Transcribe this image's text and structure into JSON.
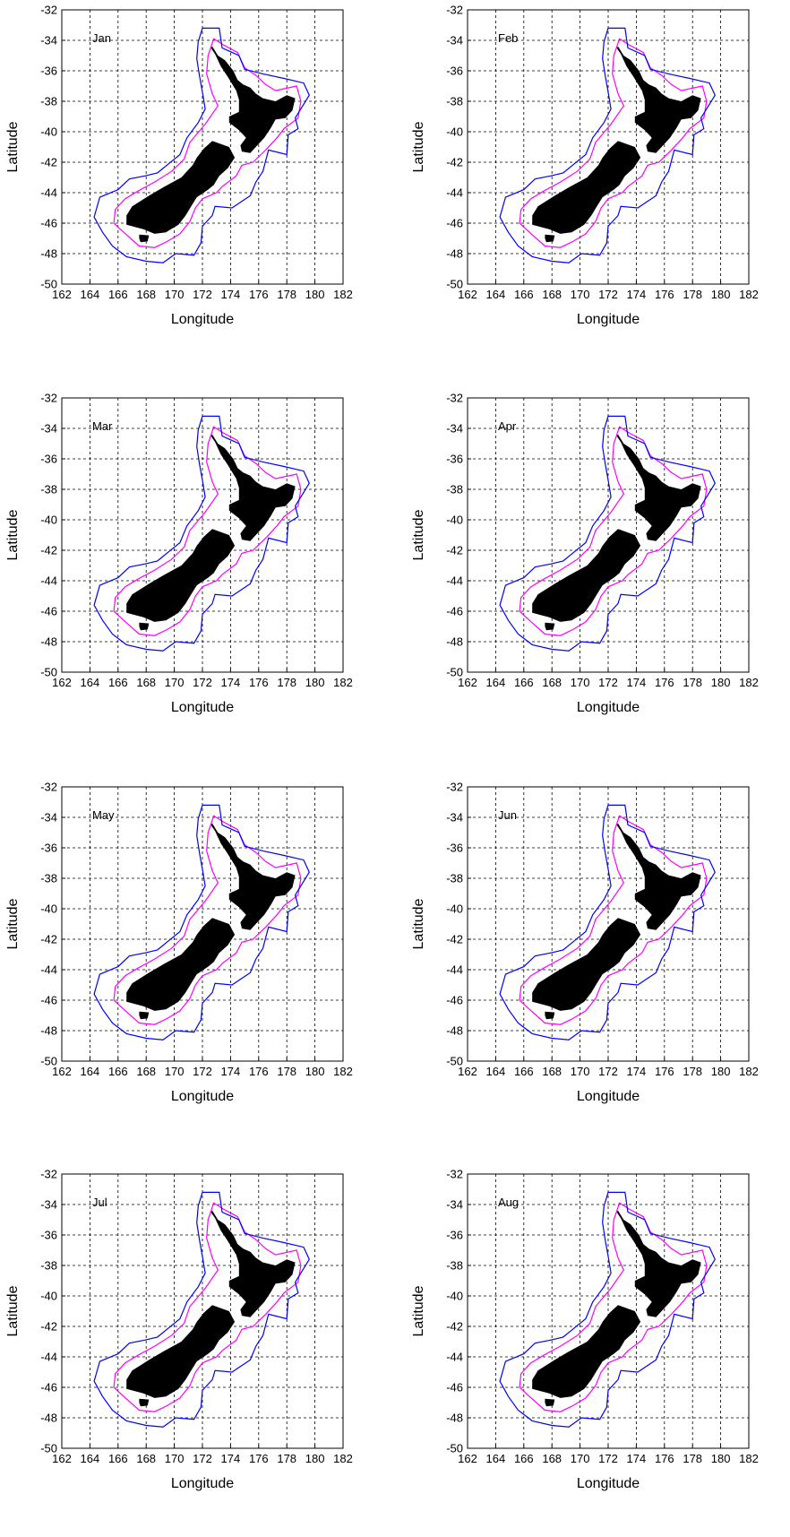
{
  "chart_data": [
    {
      "type": "line",
      "annotation": "Jan",
      "xlabel": "Longitude",
      "ylabel": "Latitude",
      "xlim": [
        162,
        182
      ],
      "ylim": [
        -50,
        -32
      ],
      "grid": true,
      "xticks": [
        "162",
        "164",
        "166",
        "168",
        "170",
        "172",
        "174",
        "176",
        "178",
        "180",
        "182"
      ],
      "yticks": [
        "-32",
        "-34",
        "-36",
        "-38",
        "-40",
        "-42",
        "-44",
        "-46",
        "-48",
        "-50"
      ]
    },
    {
      "type": "line",
      "annotation": "Feb",
      "xlabel": "Longitude",
      "ylabel": "Latitude",
      "xlim": [
        162,
        182
      ],
      "ylim": [
        -50,
        -32
      ],
      "grid": true,
      "xticks": [
        "162",
        "164",
        "166",
        "168",
        "170",
        "172",
        "174",
        "176",
        "178",
        "180",
        "182"
      ],
      "yticks": [
        "-32",
        "-34",
        "-36",
        "-38",
        "-40",
        "-42",
        "-44",
        "-46",
        "-48",
        "-50"
      ]
    },
    {
      "type": "line",
      "annotation": "Mar",
      "xlabel": "Longitude",
      "ylabel": "Latitude",
      "xlim": [
        162,
        182
      ],
      "ylim": [
        -50,
        -32
      ],
      "grid": true,
      "xticks": [
        "162",
        "164",
        "166",
        "168",
        "170",
        "172",
        "174",
        "176",
        "178",
        "180",
        "182"
      ],
      "yticks": [
        "-32",
        "-34",
        "-36",
        "-38",
        "-40",
        "-42",
        "-44",
        "-46",
        "-48",
        "-50"
      ]
    },
    {
      "type": "line",
      "annotation": "Apr",
      "xlabel": "Longitude",
      "ylabel": "Latitude",
      "xlim": [
        162,
        182
      ],
      "ylim": [
        -50,
        -32
      ],
      "grid": true,
      "xticks": [
        "162",
        "164",
        "166",
        "168",
        "170",
        "172",
        "174",
        "176",
        "178",
        "180",
        "182"
      ],
      "yticks": [
        "-32",
        "-34",
        "-36",
        "-38",
        "-40",
        "-42",
        "-44",
        "-46",
        "-48",
        "-50"
      ]
    },
    {
      "type": "line",
      "annotation": "May",
      "xlabel": "Longitude",
      "ylabel": "Latitude",
      "xlim": [
        162,
        182
      ],
      "ylim": [
        -50,
        -32
      ],
      "grid": true,
      "xticks": [
        "162",
        "164",
        "166",
        "168",
        "170",
        "172",
        "174",
        "176",
        "178",
        "180",
        "182"
      ],
      "yticks": [
        "-32",
        "-34",
        "-36",
        "-38",
        "-40",
        "-42",
        "-44",
        "-46",
        "-48",
        "-50"
      ]
    },
    {
      "type": "line",
      "annotation": "Jun",
      "xlabel": "Longitude",
      "ylabel": "Latitude",
      "xlim": [
        162,
        182
      ],
      "ylim": [
        -50,
        -32
      ],
      "grid": true,
      "xticks": [
        "162",
        "164",
        "166",
        "168",
        "170",
        "172",
        "174",
        "176",
        "178",
        "180",
        "182"
      ],
      "yticks": [
        "-32",
        "-34",
        "-36",
        "-38",
        "-40",
        "-42",
        "-44",
        "-46",
        "-48",
        "-50"
      ]
    },
    {
      "type": "line",
      "annotation": "Jul",
      "xlabel": "Longitude",
      "ylabel": "Latitude",
      "xlim": [
        162,
        182
      ],
      "ylim": [
        -50,
        -32
      ],
      "grid": true,
      "xticks": [
        "162",
        "164",
        "166",
        "168",
        "170",
        "172",
        "174",
        "176",
        "178",
        "180",
        "182"
      ],
      "yticks": [
        "-32",
        "-34",
        "-36",
        "-38",
        "-40",
        "-42",
        "-44",
        "-46",
        "-48",
        "-50"
      ]
    },
    {
      "type": "line",
      "annotation": "Aug",
      "xlabel": "Longitude",
      "ylabel": "Latitude",
      "xlim": [
        162,
        182
      ],
      "ylim": [
        -50,
        -32
      ],
      "grid": true,
      "xticks": [
        "162",
        "164",
        "166",
        "168",
        "170",
        "172",
        "174",
        "176",
        "178",
        "180",
        "182"
      ],
      "yticks": [
        "-32",
        "-34",
        "-36",
        "-38",
        "-40",
        "-42",
        "-44",
        "-46",
        "-48",
        "-50"
      ]
    }
  ],
  "shapes": {
    "north_island": [
      [
        172.7,
        -34.4
      ],
      [
        173.1,
        -35.0
      ],
      [
        173.6,
        -35.3
      ],
      [
        174.2,
        -36.0
      ],
      [
        174.5,
        -36.6
      ],
      [
        174.9,
        -36.9
      ],
      [
        175.4,
        -37.1
      ],
      [
        175.8,
        -37.5
      ],
      [
        176.3,
        -37.8
      ],
      [
        177.2,
        -38.0
      ],
      [
        178.0,
        -37.6
      ],
      [
        178.6,
        -37.8
      ],
      [
        178.4,
        -38.6
      ],
      [
        177.9,
        -39.1
      ],
      [
        177.2,
        -39.2
      ],
      [
        176.9,
        -39.7
      ],
      [
        176.4,
        -40.4
      ],
      [
        175.9,
        -40.9
      ],
      [
        175.4,
        -41.4
      ],
      [
        174.8,
        -41.3
      ],
      [
        174.7,
        -40.9
      ],
      [
        175.1,
        -40.4
      ],
      [
        174.6,
        -39.9
      ],
      [
        173.9,
        -39.4
      ],
      [
        173.9,
        -39.0
      ],
      [
        174.6,
        -38.7
      ],
      [
        174.6,
        -37.9
      ],
      [
        174.4,
        -37.3
      ],
      [
        173.8,
        -36.4
      ],
      [
        173.3,
        -35.7
      ],
      [
        172.9,
        -34.9
      ],
      [
        172.6,
        -34.5
      ]
    ],
    "south_island": [
      [
        172.7,
        -40.6
      ],
      [
        173.9,
        -41.0
      ],
      [
        174.3,
        -41.7
      ],
      [
        173.8,
        -42.4
      ],
      [
        173.2,
        -42.9
      ],
      [
        172.8,
        -43.5
      ],
      [
        172.4,
        -43.8
      ],
      [
        171.6,
        -44.3
      ],
      [
        171.2,
        -44.9
      ],
      [
        170.8,
        -45.5
      ],
      [
        170.3,
        -46.1
      ],
      [
        169.4,
        -46.6
      ],
      [
        168.6,
        -46.7
      ],
      [
        167.8,
        -46.4
      ],
      [
        166.6,
        -46.1
      ],
      [
        166.6,
        -45.5
      ],
      [
        167.0,
        -44.9
      ],
      [
        168.2,
        -44.2
      ],
      [
        169.3,
        -43.6
      ],
      [
        170.5,
        -43.0
      ],
      [
        171.3,
        -42.2
      ],
      [
        171.6,
        -41.7
      ],
      [
        172.1,
        -41.1
      ]
    ],
    "stewart_island": [
      [
        167.5,
        -46.75
      ],
      [
        168.2,
        -46.8
      ],
      [
        168.1,
        -47.2
      ],
      [
        167.6,
        -47.25
      ],
      [
        167.5,
        -47.0
      ]
    ],
    "inner_contour": [
      [
        172.8,
        -33.9
      ],
      [
        173.5,
        -34.3
      ],
      [
        174.5,
        -34.8
      ],
      [
        175.0,
        -35.8
      ],
      [
        175.8,
        -36.3
      ],
      [
        176.5,
        -36.9
      ],
      [
        177.2,
        -37.3
      ],
      [
        178.7,
        -37.0
      ],
      [
        179.0,
        -38.0
      ],
      [
        178.8,
        -39.1
      ],
      [
        177.8,
        -39.8
      ],
      [
        177.3,
        -40.4
      ],
      [
        176.5,
        -41.2
      ],
      [
        175.6,
        -42.0
      ],
      [
        174.8,
        -42.2
      ],
      [
        174.4,
        -42.9
      ],
      [
        173.4,
        -43.6
      ],
      [
        173.0,
        -44.0
      ],
      [
        172.0,
        -44.4
      ],
      [
        171.5,
        -45.0
      ],
      [
        171.1,
        -45.9
      ],
      [
        170.4,
        -46.7
      ],
      [
        169.5,
        -47.2
      ],
      [
        168.6,
        -47.6
      ],
      [
        167.5,
        -47.5
      ],
      [
        166.4,
        -46.6
      ],
      [
        165.7,
        -46.0
      ],
      [
        165.8,
        -45.1
      ],
      [
        166.5,
        -44.4
      ],
      [
        167.4,
        -43.9
      ],
      [
        168.6,
        -43.3
      ],
      [
        169.8,
        -42.6
      ],
      [
        170.7,
        -41.8
      ],
      [
        171.1,
        -40.7
      ],
      [
        172.2,
        -39.5
      ],
      [
        173.1,
        -38.3
      ],
      [
        172.7,
        -37.5
      ],
      [
        172.3,
        -36.2
      ],
      [
        172.4,
        -35.0
      ]
    ],
    "outer_contour": [
      [
        172.0,
        -33.2
      ],
      [
        173.2,
        -33.2
      ],
      [
        173.4,
        -34.5
      ],
      [
        174.6,
        -35.0
      ],
      [
        175.0,
        -35.9
      ],
      [
        176.3,
        -36.2
      ],
      [
        177.8,
        -36.5
      ],
      [
        179.2,
        -36.8
      ],
      [
        179.6,
        -37.6
      ],
      [
        178.6,
        -39.1
      ],
      [
        178.8,
        -39.8
      ],
      [
        178.1,
        -40.2
      ],
      [
        178.0,
        -41.5
      ],
      [
        176.7,
        -41.2
      ],
      [
        176.3,
        -42.6
      ],
      [
        175.8,
        -43.3
      ],
      [
        175.4,
        -44.2
      ],
      [
        174.1,
        -45.0
      ],
      [
        172.9,
        -44.9
      ],
      [
        172.7,
        -45.5
      ],
      [
        172.0,
        -46.2
      ],
      [
        171.9,
        -47.3
      ],
      [
        171.4,
        -48.1
      ],
      [
        170.1,
        -48.0
      ],
      [
        169.2,
        -48.6
      ],
      [
        168.0,
        -48.5
      ],
      [
        166.6,
        -48.2
      ],
      [
        165.6,
        -47.5
      ],
      [
        164.9,
        -46.6
      ],
      [
        164.3,
        -45.6
      ],
      [
        164.7,
        -44.3
      ],
      [
        166.0,
        -43.8
      ],
      [
        166.8,
        -43.1
      ],
      [
        167.9,
        -42.9
      ],
      [
        168.8,
        -42.7
      ],
      [
        169.6,
        -42.1
      ],
      [
        170.4,
        -41.5
      ],
      [
        170.9,
        -40.4
      ],
      [
        171.7,
        -39.4
      ],
      [
        172.2,
        -38.5
      ],
      [
        172.0,
        -37.4
      ],
      [
        171.8,
        -36.4
      ],
      [
        171.6,
        -35.2
      ],
      [
        171.7,
        -34.1
      ]
    ]
  },
  "colors": {
    "land": "#000000",
    "inner_contour": "#ff00ff",
    "outer_contour": "#0000ff",
    "grid": "#000000",
    "axis": "#000000"
  }
}
